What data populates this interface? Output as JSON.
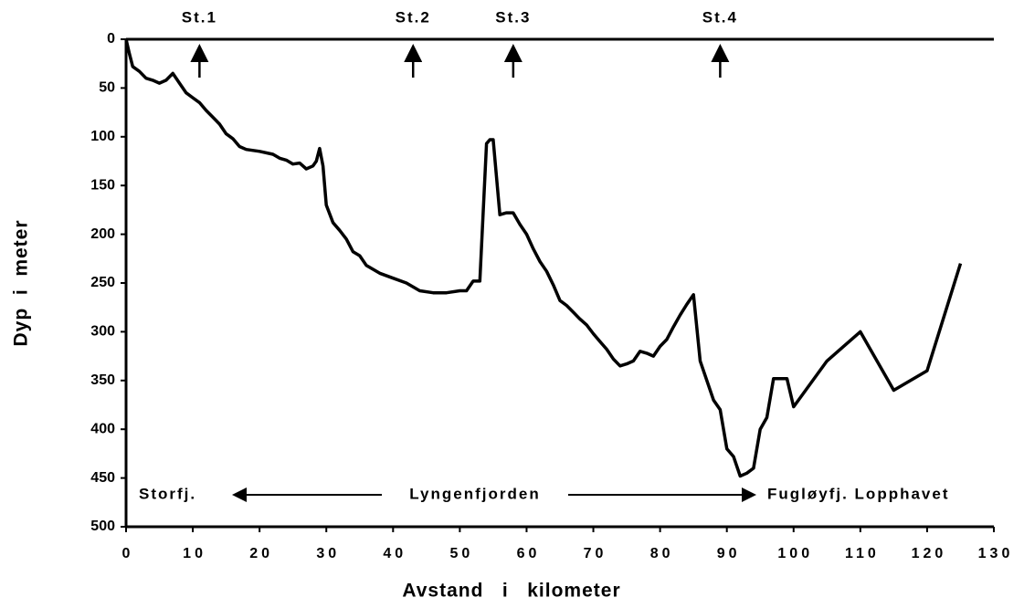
{
  "chart_data": {
    "type": "line",
    "xlabel": "Avstand   i   kilometer",
    "ylabel": "Dyp  i  meter",
    "x": [
      0,
      0.5,
      1,
      2,
      3,
      4,
      5,
      6,
      7,
      8,
      9,
      10,
      11,
      12,
      13,
      14,
      15,
      16,
      17,
      18,
      20,
      22,
      23,
      24,
      25,
      26,
      27,
      28,
      28.5,
      29,
      29.5,
      30,
      31,
      32,
      33,
      34,
      35,
      36,
      38,
      40,
      42,
      44,
      46,
      48,
      50,
      51,
      52,
      53,
      54,
      54.5,
      55,
      56,
      57,
      58,
      59,
      60,
      61,
      62,
      63,
      64,
      65,
      66,
      67,
      68,
      69,
      70,
      71,
      72,
      73,
      74,
      75,
      76,
      77,
      78,
      79,
      80,
      81,
      82,
      83,
      84,
      85,
      86,
      87,
      88,
      89,
      90,
      91,
      92,
      93,
      94,
      95,
      96,
      97,
      99,
      100,
      105,
      110,
      115,
      120,
      125
    ],
    "series": [
      {
        "name": "Dyp",
        "color": "#000000",
        "values": [
          0,
          15,
          28,
          33,
          40,
          42,
          45,
          42,
          35,
          45,
          55,
          60,
          65,
          73,
          80,
          87,
          97,
          102,
          110,
          113,
          115,
          118,
          122,
          124,
          128,
          127,
          133,
          130,
          125,
          112,
          130,
          170,
          188,
          196,
          205,
          218,
          222,
          232,
          240,
          245,
          250,
          258,
          260,
          260,
          258,
          258,
          248,
          248,
          107,
          103,
          103,
          180,
          178,
          178,
          190,
          200,
          215,
          228,
          238,
          252,
          268,
          273,
          280,
          287,
          293,
          302,
          310,
          318,
          328,
          335,
          333,
          330,
          320,
          322,
          325,
          315,
          308,
          295,
          283,
          272,
          262,
          330,
          350,
          370,
          380,
          420,
          428,
          448,
          445,
          440,
          400,
          388,
          348,
          348,
          377,
          330,
          300,
          360,
          340,
          230
        ]
      }
    ],
    "xlim": [
      0,
      130
    ],
    "xticks": [
      0,
      10,
      20,
      30,
      40,
      50,
      60,
      70,
      80,
      90,
      100,
      110,
      120,
      130
    ],
    "ylim": [
      500,
      0
    ],
    "yticks": [
      0,
      50,
      100,
      150,
      200,
      250,
      300,
      350,
      400,
      450,
      500
    ],
    "stations": [
      {
        "text": "St.1",
        "x": 11
      },
      {
        "text": "St.2",
        "x": 43
      },
      {
        "text": "St.3",
        "x": 58
      },
      {
        "text": "St.4",
        "x": 89
      }
    ],
    "regions": [
      "Storfj.",
      "Lyngenfjorden",
      "Fugløyfj.  Lopphavet"
    ]
  }
}
